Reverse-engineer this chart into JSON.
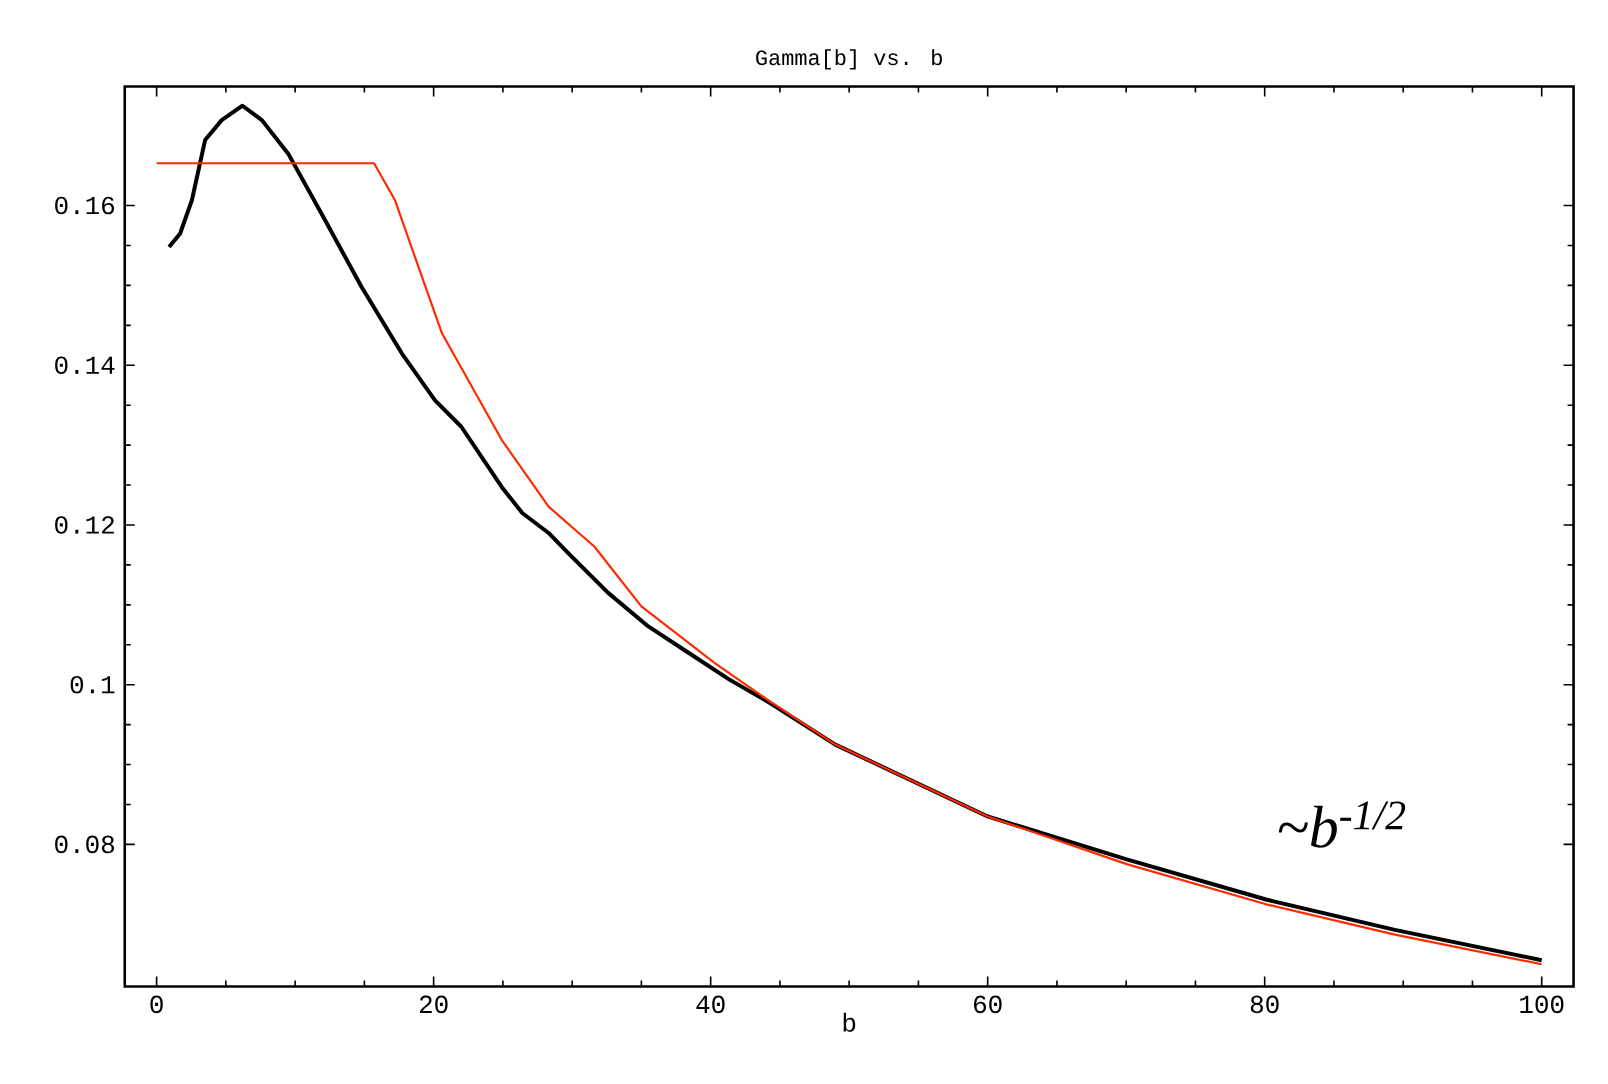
{
  "chart_data": {
    "type": "line",
    "title": "Gamma[b]  vs.  b",
    "xlabel": "b",
    "xlim": [
      -2.3,
      102.3
    ],
    "ylim": [
      0.0622,
      0.1749
    ],
    "xticks": [
      0,
      20,
      40,
      60,
      80,
      100
    ],
    "yticks": [
      0.08,
      0.1,
      0.12,
      0.14,
      0.16
    ],
    "grid": false,
    "marker": "none",
    "line_style": "solid",
    "annotations": [
      "~b$^{-1/2}$"
    ],
    "series": [
      {
        "color": "#000000",
        "x": [
          0.9,
          1.7,
          2.55,
          3.5,
          4.7,
          6.2,
          7.6,
          9.5,
          11.9,
          14.8,
          17.7,
          20.1,
          22.0,
          24.9,
          26.4,
          28.3,
          29.7,
          32.6,
          35.5,
          38.4,
          41.3,
          44.2,
          49.0,
          60.0,
          70.1,
          80.1,
          89.4,
          100
        ],
        "values": [
          0.1548,
          0.1565,
          0.1607,
          0.1682,
          0.1707,
          0.1725,
          0.1707,
          0.1665,
          0.159,
          0.1498,
          0.1415,
          0.1356,
          0.1323,
          0.1248,
          0.1215,
          0.119,
          0.1165,
          0.1115,
          0.1073,
          0.104,
          0.1007,
          0.0978,
          0.0925,
          0.0835,
          0.0781,
          0.0731,
          0.0693,
          0.0655
        ]
      },
      {
        "color": "#ff2a00",
        "x": [
          0,
          15.7,
          17.2,
          20.6,
          24.9,
          28.3,
          31.6,
          35.0,
          40.3,
          44.2,
          49.0,
          60.0,
          70.1,
          80.1,
          89.4,
          100
        ],
        "values": [
          0.1653,
          0.1653,
          0.1607,
          0.144,
          0.1307,
          0.1223,
          0.1173,
          0.1098,
          0.1027,
          0.098,
          0.0925,
          0.0835,
          0.0775,
          0.0725,
          0.0687,
          0.065
        ]
      }
    ]
  }
}
